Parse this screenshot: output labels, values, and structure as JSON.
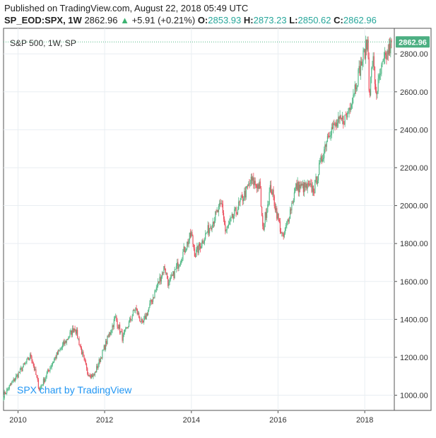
{
  "header": {
    "published": "Published on TradingView.com, August 22, 2018 05:49 UTC",
    "symbol": "SP_EOD:SPX, 1W",
    "last": "2862.96",
    "change": "+5.91 (+0.21%)",
    "open_label": "O:",
    "open": "2853.93",
    "high_label": "H:",
    "high": "2873.23",
    "low_label": "L:",
    "low": "2850.62",
    "close_label": "C:",
    "close": "2862.96"
  },
  "chart_title": "S&P 500, 1W, SP",
  "watermark": "SPX chart by TradingView",
  "colors": {
    "up": "#26a69a",
    "up_candle": "#53b987",
    "down_candle": "#eb4d5c",
    "last_price_badge": "#4caf82",
    "watermark": "#2196f3",
    "grid": "#e9eef2"
  },
  "chart_data": {
    "type": "candlestick",
    "title": "S&P 500, 1W, SP",
    "ylim": [
      920,
      2920
    ],
    "y_ticks": [
      "2800.00",
      "2600.00",
      "2400.00",
      "2200.00",
      "2000.00",
      "1800.00",
      "1600.00",
      "1400.00",
      "1200.00",
      "1000.00"
    ],
    "x_ticks": [
      "2010",
      "2012",
      "2014",
      "2016",
      "2018"
    ],
    "last_price": "2862.96",
    "grid": true,
    "keypoints": [
      {
        "date": "2009-09-01",
        "close": 1000
      },
      {
        "date": "2010-04-20",
        "close": 1210
      },
      {
        "date": "2010-07-01",
        "close": 1030
      },
      {
        "date": "2010-11-01",
        "close": 1190
      },
      {
        "date": "2011-04-25",
        "close": 1360
      },
      {
        "date": "2011-08-08",
        "close": 1120
      },
      {
        "date": "2011-10-01",
        "close": 1100
      },
      {
        "date": "2012-04-01",
        "close": 1410
      },
      {
        "date": "2012-06-01",
        "close": 1300
      },
      {
        "date": "2012-09-15",
        "close": 1460
      },
      {
        "date": "2012-11-15",
        "close": 1370
      },
      {
        "date": "2013-05-20",
        "close": 1680
      },
      {
        "date": "2013-06-24",
        "close": 1580
      },
      {
        "date": "2013-12-31",
        "close": 1850
      },
      {
        "date": "2014-02-01",
        "close": 1740
      },
      {
        "date": "2014-09-15",
        "close": 2010
      },
      {
        "date": "2014-10-15",
        "close": 1860
      },
      {
        "date": "2015-05-20",
        "close": 2130
      },
      {
        "date": "2015-08-01",
        "close": 2100
      },
      {
        "date": "2015-08-25",
        "close": 1870
      },
      {
        "date": "2015-11-01",
        "close": 2100
      },
      {
        "date": "2016-02-11",
        "close": 1820
      },
      {
        "date": "2016-06-01",
        "close": 2100
      },
      {
        "date": "2016-11-01",
        "close": 2090
      },
      {
        "date": "2017-03-01",
        "close": 2390
      },
      {
        "date": "2017-08-01",
        "close": 2470
      },
      {
        "date": "2018-01-26",
        "close": 2870
      },
      {
        "date": "2018-02-09",
        "close": 2580
      },
      {
        "date": "2018-03-10",
        "close": 2780
      },
      {
        "date": "2018-04-05",
        "close": 2590
      },
      {
        "date": "2018-06-01",
        "close": 2740
      },
      {
        "date": "2018-08-20",
        "close": 2862.96
      }
    ]
  }
}
